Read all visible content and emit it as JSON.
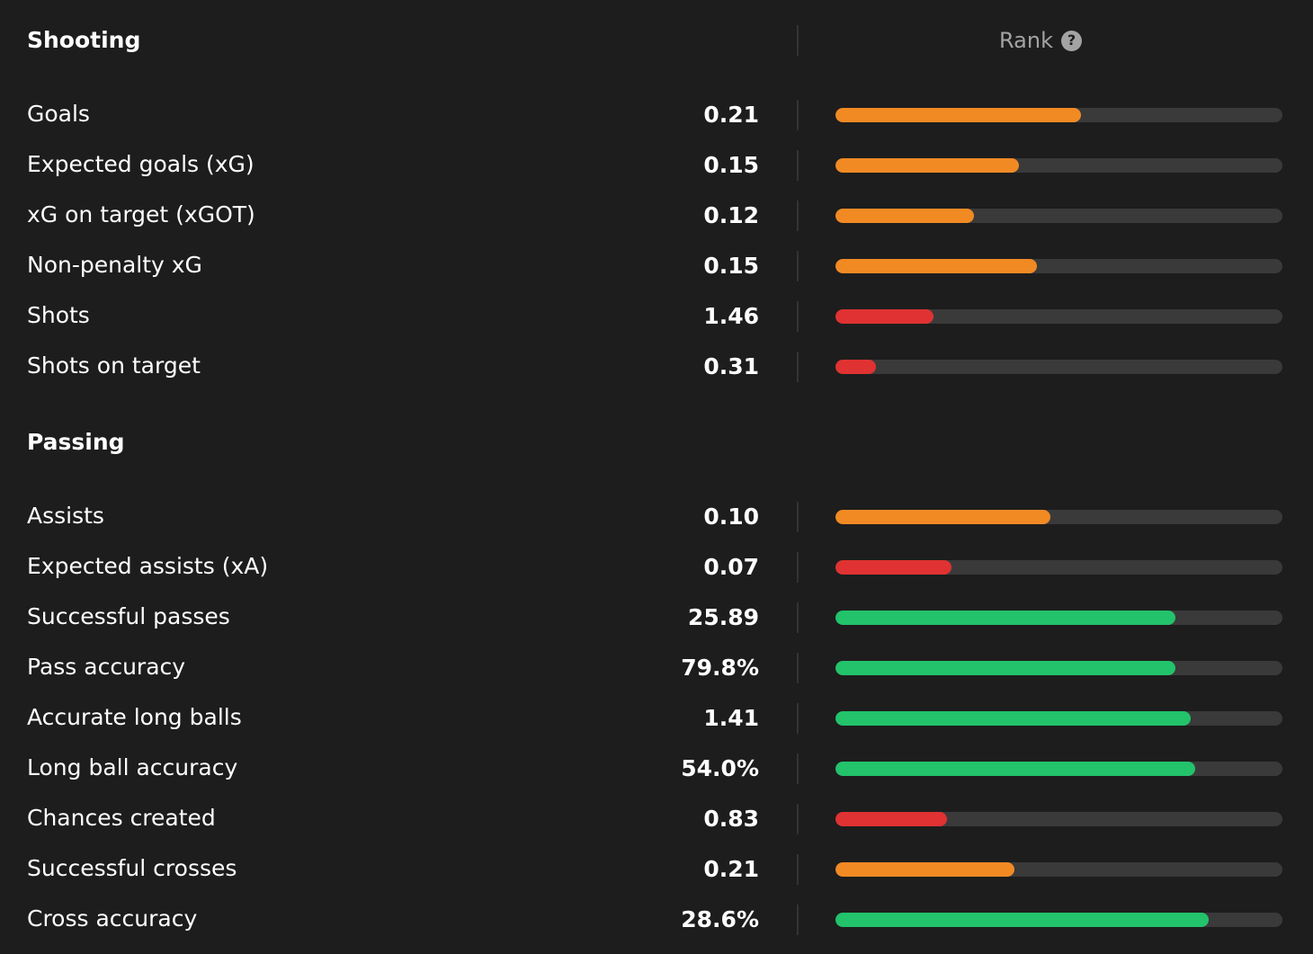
{
  "colors": {
    "background": "#1d1d1d",
    "track": "#3a3a3a",
    "high": "#22c36b",
    "mid": "#f28a24",
    "low": "#e03232"
  },
  "shooting": {
    "title": "Shooting",
    "rows": [
      {
        "label": "Goals",
        "value": "0.21",
        "rank": 0.55,
        "level": "mid"
      },
      {
        "label": "Expected goals (xG)",
        "value": "0.15",
        "rank": 0.41,
        "level": "mid"
      },
      {
        "label": "xG on target (xGOT)",
        "value": "0.12",
        "rank": 0.31,
        "level": "mid"
      },
      {
        "label": "Non-penalty xG",
        "value": "0.15",
        "rank": 0.45,
        "level": "mid"
      },
      {
        "label": "Shots",
        "value": "1.46",
        "rank": 0.22,
        "level": "low"
      },
      {
        "label": "Shots on target",
        "value": "0.31",
        "rank": 0.09,
        "level": "low"
      }
    ]
  },
  "rank_header": {
    "label": "Rank",
    "icon": "question-icon",
    "icon_glyph": "?"
  },
  "passing": {
    "title": "Passing",
    "rows": [
      {
        "label": "Assists",
        "value": "0.10",
        "rank": 0.48,
        "level": "mid"
      },
      {
        "label": "Expected assists (xA)",
        "value": "0.07",
        "rank": 0.26,
        "level": "low"
      },
      {
        "label": "Successful passes",
        "value": "25.89",
        "rank": 0.76,
        "level": "high"
      },
      {
        "label": "Pass accuracy",
        "value": "79.8%",
        "rank": 0.76,
        "level": "high"
      },
      {
        "label": "Accurate long balls",
        "value": "1.41",
        "rank": 0.795,
        "level": "high"
      },
      {
        "label": "Long ball accuracy",
        "value": "54.0%",
        "rank": 0.805,
        "level": "high"
      },
      {
        "label": "Chances created",
        "value": "0.83",
        "rank": 0.25,
        "level": "low"
      },
      {
        "label": "Successful crosses",
        "value": "0.21",
        "rank": 0.4,
        "level": "mid"
      },
      {
        "label": "Cross accuracy",
        "value": "28.6%",
        "rank": 0.835,
        "level": "high"
      }
    ]
  }
}
